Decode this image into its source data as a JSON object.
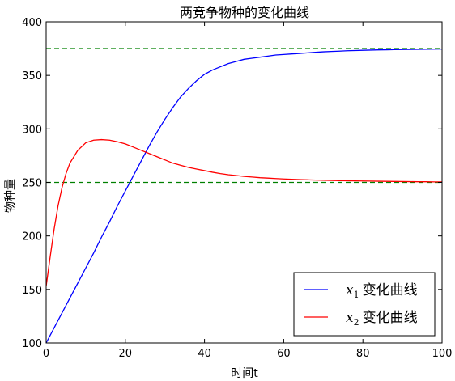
{
  "chart_data": {
    "type": "line",
    "title": "两竞争物种的变化曲线",
    "xlabel": "时间t",
    "ylabel": "物种量",
    "xlim": [
      0,
      100
    ],
    "ylim": [
      100,
      400
    ],
    "xticks": [
      0,
      20,
      40,
      60,
      80,
      100
    ],
    "yticks": [
      100,
      150,
      200,
      250,
      300,
      350,
      400
    ],
    "grid": false,
    "legend_position": "bottom-right",
    "series": [
      {
        "name_var": "x",
        "name_sub": "1",
        "name_text": "变化曲线",
        "color": "#0000ff",
        "x": [
          0,
          2,
          4,
          6,
          8,
          10,
          12,
          14,
          16,
          18,
          20,
          22,
          24,
          26,
          28,
          30,
          32,
          34,
          36,
          38,
          40,
          42,
          44,
          46,
          48,
          50,
          52,
          54,
          56,
          58,
          60,
          62,
          64,
          66,
          68,
          70,
          72,
          74,
          76,
          78,
          80,
          82,
          84,
          86,
          88,
          90,
          92,
          94,
          96,
          98,
          100
        ],
        "values": [
          100,
          114,
          128,
          142,
          156,
          170,
          184,
          199,
          213,
          228,
          242,
          256,
          270,
          284,
          297,
          309,
          320,
          330,
          338,
          345,
          351,
          355,
          358,
          361,
          363,
          365,
          366,
          367,
          368,
          369,
          369.5,
          370,
          370.5,
          371,
          371.5,
          372,
          372.3,
          372.6,
          373,
          373.2,
          373.4,
          373.6,
          373.8,
          373.9,
          374,
          374.1,
          374.2,
          374.3,
          374.4,
          374.5,
          374.6
        ]
      },
      {
        "name_var": "x",
        "name_sub": "2",
        "name_text": "变化曲线",
        "color": "#ff0000",
        "x": [
          0,
          1,
          2,
          3,
          4,
          5,
          6,
          8,
          10,
          12,
          14,
          16,
          18,
          20,
          22,
          24,
          26,
          28,
          30,
          32,
          34,
          36,
          38,
          40,
          42,
          44,
          46,
          48,
          50,
          52,
          54,
          56,
          58,
          60,
          62,
          64,
          66,
          68,
          70,
          72,
          74,
          76,
          78,
          80,
          82,
          84,
          86,
          88,
          90,
          92,
          94,
          96,
          98,
          100
        ],
        "values": [
          153,
          180,
          206,
          228,
          245,
          258,
          268,
          280,
          287,
          289.5,
          290,
          289.5,
          288,
          286,
          283,
          280,
          277,
          274,
          271,
          268,
          266,
          264,
          262.5,
          261,
          259.5,
          258.2,
          257.2,
          256.4,
          255.6,
          255,
          254.4,
          254,
          253.6,
          253.2,
          252.9,
          252.6,
          252.4,
          252.2,
          252,
          251.8,
          251.6,
          251.5,
          251.4,
          251.3,
          251.2,
          251.1,
          251,
          250.9,
          250.8,
          250.7,
          250.6,
          250.6,
          250.5,
          250.5
        ]
      }
    ],
    "reference_lines": [
      {
        "axis": "y",
        "value": 375,
        "color": "#008000",
        "style": "dashed"
      },
      {
        "axis": "y",
        "value": 250,
        "color": "#008000",
        "style": "dashed"
      }
    ]
  }
}
